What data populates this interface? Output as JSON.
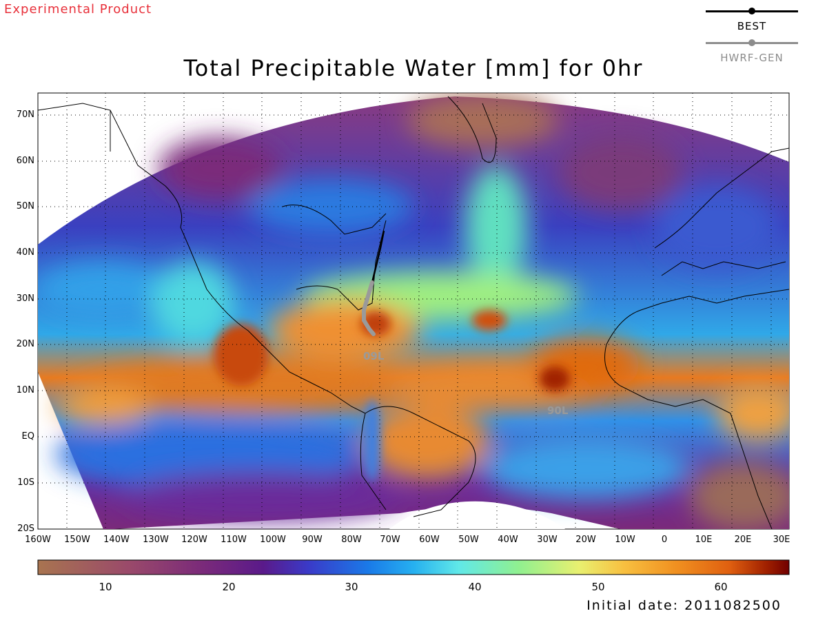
{
  "header": {
    "experimental_label": "Experimental Product",
    "title": "Total Precipitable Water [mm] for 0hr"
  },
  "legend": {
    "items": [
      {
        "label": "BEST",
        "color": "#000000"
      },
      {
        "label": "HWRF-GEN",
        "color": "#8c8c8c"
      }
    ]
  },
  "map": {
    "lat_labels": [
      "70N",
      "60N",
      "50N",
      "40N",
      "30N",
      "20N",
      "10N",
      "EQ",
      "10S",
      "20S"
    ],
    "lon_labels": [
      "160W",
      "150W",
      "140W",
      "130W",
      "120W",
      "110W",
      "100W",
      "90W",
      "80W",
      "70W",
      "60W",
      "50W",
      "40W",
      "30W",
      "20W",
      "10W",
      "0",
      "10E",
      "20E",
      "30E"
    ],
    "storms": [
      {
        "id": "09L",
        "color": "#9a9a9a"
      },
      {
        "id": "90L",
        "color": "#9a9a9a"
      }
    ]
  },
  "colorbar": {
    "units": "mm",
    "range": [
      5,
      66
    ],
    "tick_labels": [
      "10",
      "20",
      "30",
      "40",
      "50",
      "60"
    ],
    "stops": [
      "#a87450",
      "#9a4a6a",
      "#7a2a7a",
      "#5a1a8a",
      "#3a3ac8",
      "#1a7ae8",
      "#26b0f0",
      "#60e8e8",
      "#90f090",
      "#e8f070",
      "#f8c040",
      "#f09020",
      "#e06010",
      "#a02000",
      "#700000"
    ]
  },
  "footer": {
    "initial_date": "Initial date: 2011082500"
  }
}
